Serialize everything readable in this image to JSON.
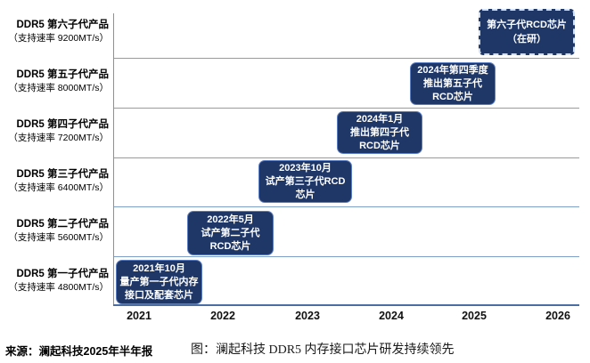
{
  "chart_data": {
    "type": "timeline",
    "title": "图：澜起科技 DDR5 内存接口芯片研发持续领先",
    "source": "来源：澜起科技2025年半年报",
    "x_axis": {
      "ticks": [
        "2021",
        "2022",
        "2023",
        "2024",
        "2025",
        "2026"
      ],
      "range": [
        2021,
        2026
      ],
      "gridlines": "horizontal-row-separators",
      "legend_position": "none"
    },
    "colors": {
      "milestone_fill": "#1f3767",
      "milestone_border": "#5b7ec2",
      "in_development_dashed_border": "#cfe0f7",
      "gridline": "#7e9fc7",
      "axis": "#4a6da3",
      "box_text": "#ffffff",
      "label_text": "#000000"
    },
    "rows": [
      {
        "product": "DDR5 第六子代产品",
        "rate": "（支持速率 9200MT/s）",
        "milestone": {
          "date": "",
          "event": "第六子代RCD芯片（在研）",
          "status": "在研",
          "border_style": "dashed",
          "lines": [
            "第六子代RCD芯片",
            "（在研）"
          ]
        }
      },
      {
        "product": "DDR5 第五子代产品",
        "rate": "（支持速率 8000MT/s）",
        "milestone": {
          "date": "2024年第四季度",
          "event": "推出第五子代RCD芯片",
          "border_style": "solid",
          "lines": [
            "2024年第四季度",
            "推出第五子代",
            "RCD芯片"
          ]
        }
      },
      {
        "product": "DDR5 第四子代产品",
        "rate": "（支持速率 7200MT/s）",
        "milestone": {
          "date": "2024年1月",
          "event": "推出第四子代RCD芯片",
          "border_style": "solid",
          "lines": [
            "2024年1月",
            "推出第四子代",
            "RCD芯片"
          ]
        }
      },
      {
        "product": "DDR5 第三子代产品",
        "rate": "（支持速率 6400MT/s）",
        "milestone": {
          "date": "2023年10月",
          "event": "试产第三子代RCD芯片",
          "border_style": "solid",
          "lines": [
            "2023年10月",
            "试产第三子代RCD",
            "芯片"
          ]
        }
      },
      {
        "product": "DDR5 第二子代产品",
        "rate": "（支持速率 5600MT/s）",
        "milestone": {
          "date": "2022年5月",
          "event": "试产第二子代RCD芯片",
          "border_style": "solid",
          "lines": [
            "2022年5月",
            "试产第二子代",
            "RCD芯片"
          ]
        }
      },
      {
        "product": "DDR5 第一子代产品",
        "rate": "（支持速率 4800MT/s）",
        "milestone": {
          "date": "2021年10月",
          "event": "量产第一子代内存接口及配套芯片",
          "border_style": "solid",
          "lines": [
            "2021年10月",
            "量产第一子代内存",
            "接口及配套芯片"
          ]
        }
      }
    ]
  }
}
